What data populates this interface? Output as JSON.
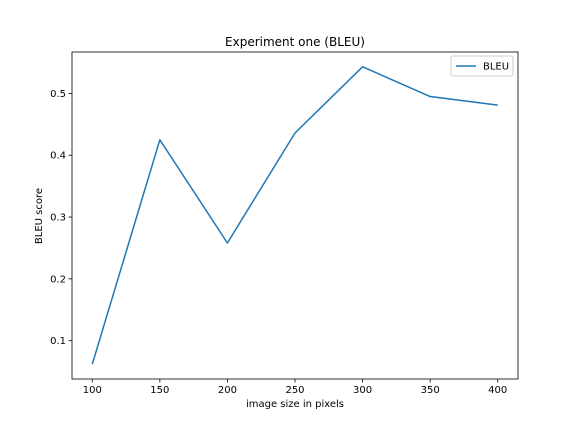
{
  "chart_data": {
    "type": "line",
    "title": "Experiment one (BLEU)",
    "xlabel": "image size in pixels",
    "ylabel": "BLEU score",
    "x": [
      100,
      150,
      200,
      250,
      300,
      350,
      400
    ],
    "series": [
      {
        "name": "BLEU",
        "values": [
          0.062,
          0.425,
          0.258,
          0.436,
          0.543,
          0.495,
          0.481
        ],
        "color": "#1f77b4"
      }
    ],
    "xlim": [
      85,
      415
    ],
    "ylim": [
      0.038,
      0.567
    ],
    "xticks": [
      100,
      150,
      200,
      250,
      300,
      350,
      400
    ],
    "yticks": [
      0.1,
      0.2,
      0.3,
      0.4,
      0.5
    ],
    "ytick_labels": [
      "0.1",
      "0.2",
      "0.3",
      "0.4",
      "0.5"
    ],
    "grid": false,
    "legend": "top-right"
  }
}
